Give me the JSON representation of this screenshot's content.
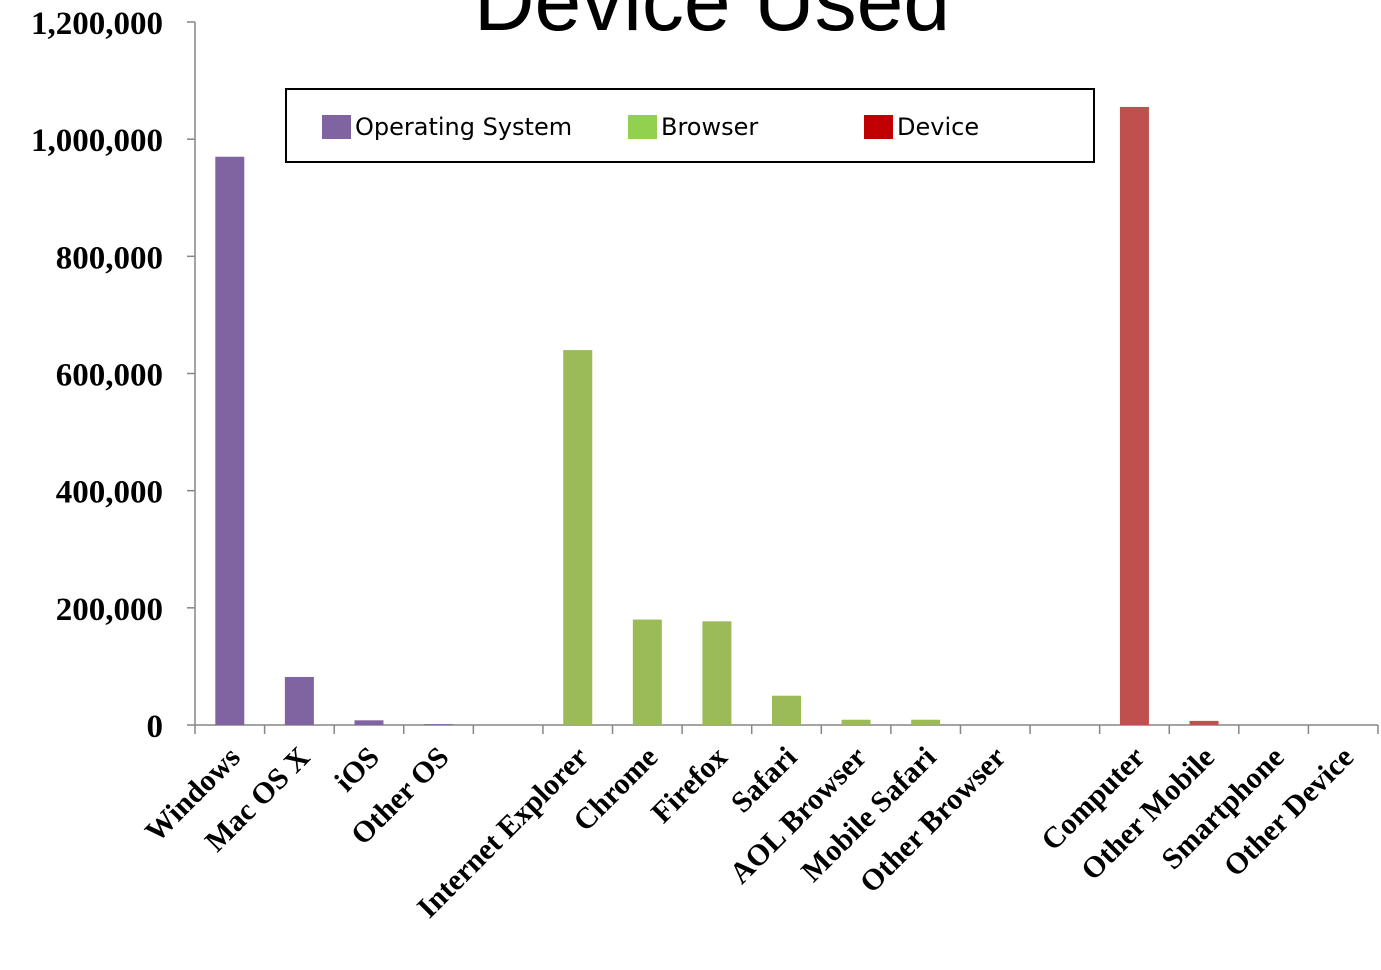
{
  "chart_data": {
    "type": "bar",
    "title": "Device Used",
    "categories": [
      "Windows",
      "Mac OS X",
      "iOS",
      "Other OS",
      "",
      "Internet Explorer",
      "Chrome",
      "Firefox",
      "Safari",
      "AOL Browser",
      "Mobile Safari",
      "Other Browser",
      "",
      "Computer",
      "Other Mobile",
      "Smartphone",
      "Other Device"
    ],
    "series": [
      {
        "name": "Operating System",
        "color": "#8064A2",
        "values": [
          970000,
          82000,
          8000,
          1500,
          null,
          null,
          null,
          null,
          null,
          null,
          null,
          null,
          null,
          null,
          null,
          null,
          null
        ]
      },
      {
        "name": "Browser",
        "color": "#9BBB59",
        "values": [
          null,
          null,
          null,
          null,
          null,
          640000,
          180000,
          177000,
          50000,
          9000,
          9000,
          0,
          null,
          null,
          null,
          null,
          null
        ]
      },
      {
        "name": "Device",
        "color": "#C0504D",
        "values": [
          null,
          null,
          null,
          null,
          null,
          null,
          null,
          null,
          null,
          null,
          null,
          null,
          null,
          1055000,
          7000,
          0,
          0
        ]
      }
    ],
    "legend_swatch_colors": {
      "Operating System": "#8064A2",
      "Browser": "#92D050",
      "Device": "#C00000"
    },
    "ylim": [
      0,
      1200000
    ],
    "yticks": [
      "0",
      "200,000",
      "400,000",
      "600,000",
      "800,000",
      "1,000,000",
      "1,200,000"
    ],
    "legend_position": "top-center",
    "grid": false
  }
}
